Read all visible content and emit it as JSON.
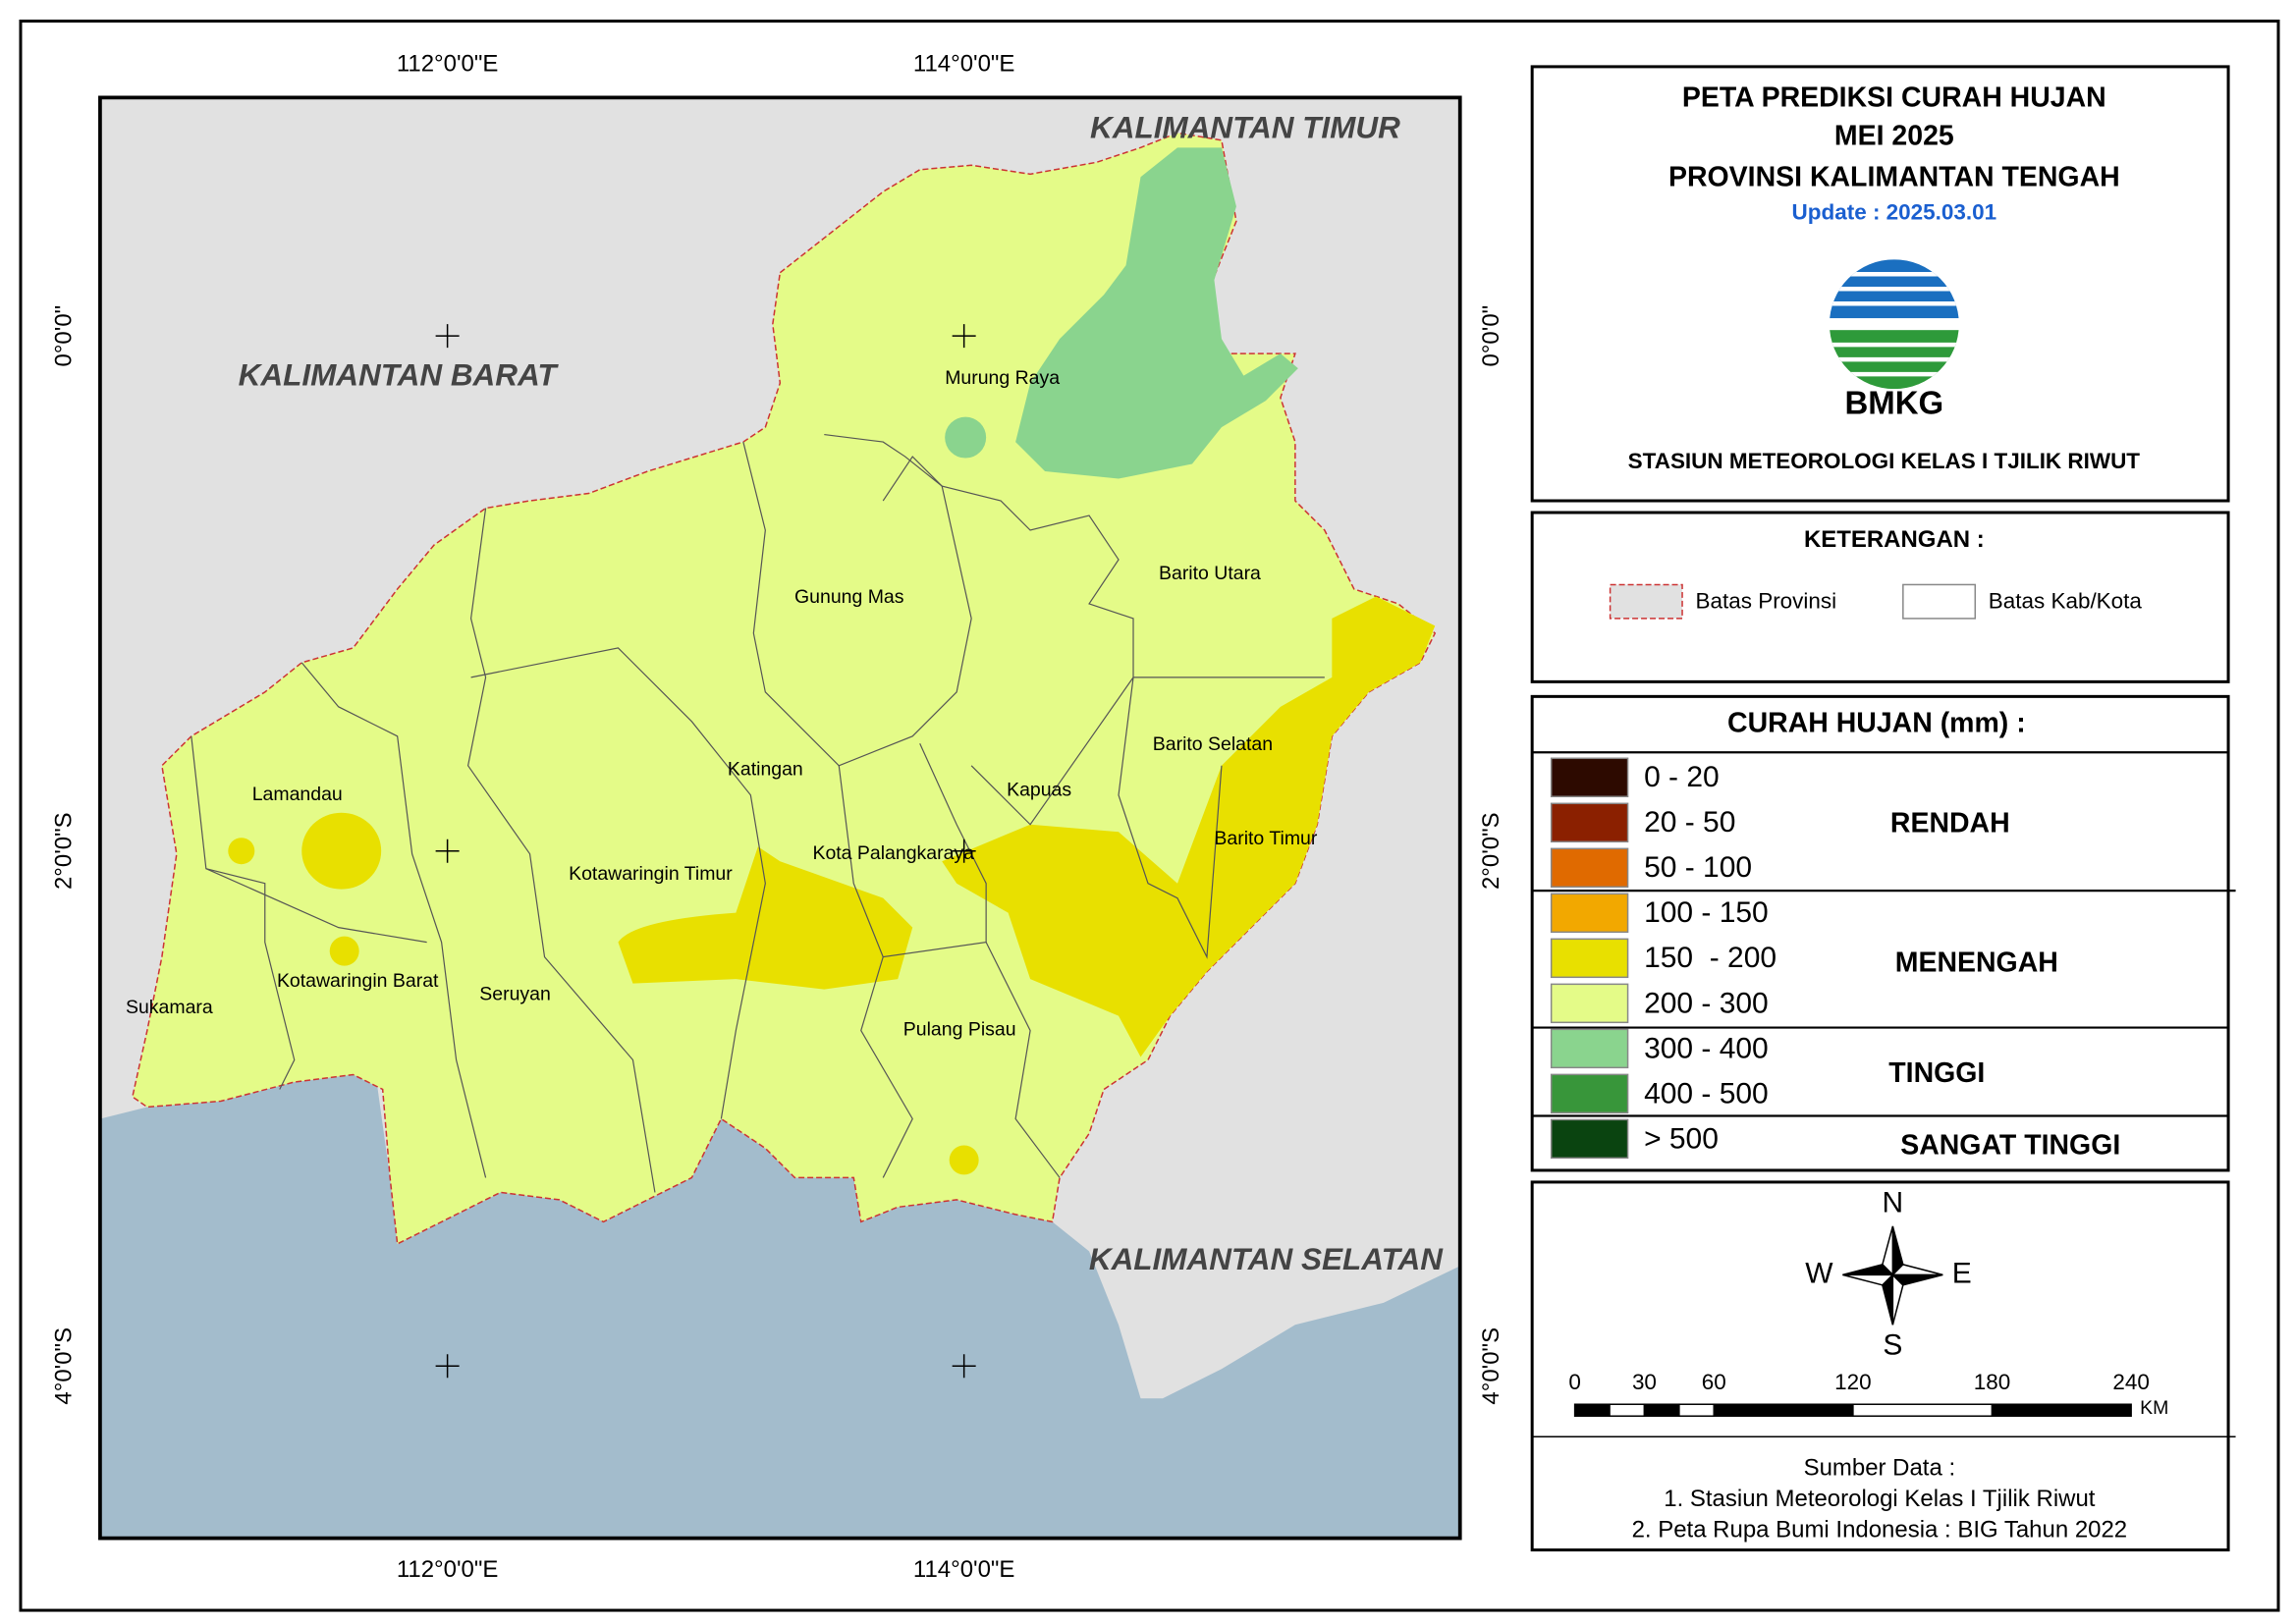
{
  "map": {
    "lon_labels": [
      "112°0'0\"E",
      "114°0'0\"E"
    ],
    "lat_labels": [
      "0°0'0\"",
      "2°0'0\"S",
      "4°0'0\"S"
    ],
    "neighbors": [
      "KALIMANTAN TIMUR",
      "KALIMANTAN BARAT",
      "KALIMANTAN SELATAN"
    ],
    "regencies": [
      "Murung Raya",
      "Gunung Mas",
      "Barito Utara",
      "Lamandau",
      "Katingan",
      "Barito Selatan",
      "Kapuas",
      "Barito Timur",
      "Kota Palangkaraya",
      "Kotawaringin Timur",
      "Sukamara",
      "Kotawaringin Barat",
      "Seruyan",
      "Pulang Pisau"
    ]
  },
  "title": {
    "lines": [
      "PETA PREDIKSI CURAH HUJAN",
      "MEI 2025",
      "PROVINSI KALIMANTAN TENGAH"
    ],
    "update": "Update : 2025.03.01",
    "logo_text": "BMKG",
    "station": "STASIUN METEOROLOGI KELAS I TJILIK RIWUT"
  },
  "keterangan": {
    "title": "KETERANGAN :",
    "items": [
      "Batas Provinsi",
      "Batas Kab/Kota"
    ]
  },
  "legend": {
    "title": "CURAH HUJAN (mm) :",
    "items": [
      {
        "label": "0 - 20",
        "color": "#2d0a00"
      },
      {
        "label": "20 - 50",
        "color": "#8b2000"
      },
      {
        "label": "50 - 100",
        "color": "#e06a00"
      },
      {
        "label": "100 - 150",
        "color": "#f2a800"
      },
      {
        "label": "150  - 200",
        "color": "#e8e000"
      },
      {
        "label": "200 - 300",
        "color": "#e4fb88"
      },
      {
        "label": "300 - 400",
        "color": "#8ad48e"
      },
      {
        "label": "400 - 500",
        "color": "#38963a"
      },
      {
        "label": "> 500",
        "color": "#0a4410"
      }
    ],
    "categories": [
      "RENDAH",
      "MENENGAH",
      "TINGGI",
      "SANGAT TINGGI"
    ]
  },
  "compass": {
    "n": "N",
    "e": "E",
    "s": "S",
    "w": "W"
  },
  "scale": {
    "ticks": [
      0,
      30,
      60,
      120,
      180,
      240
    ],
    "unit": "KM"
  },
  "source": {
    "title": "Sumber Data :",
    "lines": [
      "1. Stasiun Meteorologi Kelas I Tjilik Riwut",
      "2. Peta Rupa Bumi Indonesia : BIG Tahun 2022"
    ]
  }
}
